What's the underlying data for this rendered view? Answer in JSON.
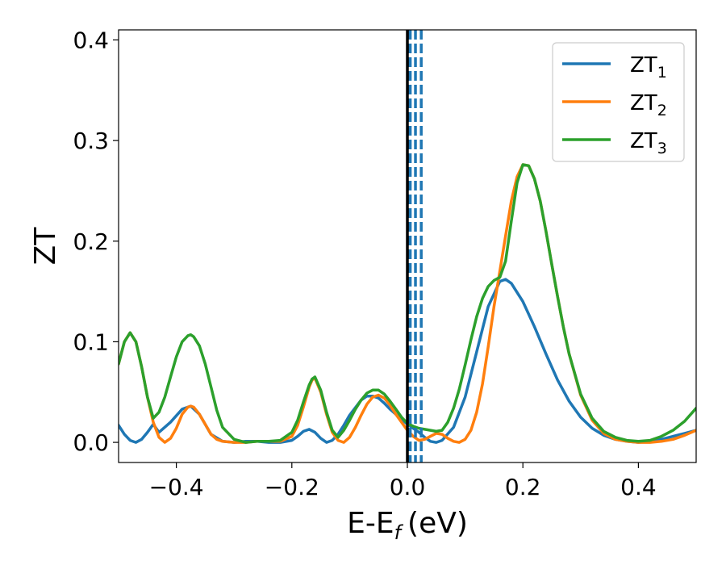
{
  "chart_data": {
    "type": "line",
    "xlabel": "E-E",
    "xlabel_sub": "f",
    "xlabel_unit": "(eV)",
    "ylabel": "ZT",
    "xlim": [
      -0.5,
      0.5
    ],
    "ylim": [
      -0.02,
      0.41
    ],
    "xticks": [
      -0.4,
      -0.2,
      0.0,
      0.2,
      0.4
    ],
    "xtick_labels": [
      "−0.4",
      "−0.2",
      "0.0",
      "0.2",
      "0.4"
    ],
    "yticks": [
      0.0,
      0.1,
      0.2,
      0.3,
      0.4
    ],
    "ytick_labels": [
      "0.0",
      "0.1",
      "0.2",
      "0.3",
      "0.4"
    ],
    "grid": false,
    "legend_position": "top-right",
    "vlines": [
      {
        "x": 0.0,
        "color": "#000000",
        "style": "solid"
      },
      {
        "x": 0.003,
        "color": "#000000",
        "style": "dashed"
      },
      {
        "x": 0.005,
        "color": "#1f77b4",
        "style": "dashed"
      },
      {
        "x": 0.014,
        "color": "#1f77b4",
        "style": "dashed"
      },
      {
        "x": 0.024,
        "color": "#1f77b4",
        "style": "dashed"
      }
    ],
    "series": [
      {
        "name": "ZT",
        "sub": "1",
        "color": "#1f77b4",
        "x": [
          -0.5,
          -0.49,
          -0.48,
          -0.47,
          -0.46,
          -0.45,
          -0.44,
          -0.43,
          -0.41,
          -0.39,
          -0.375,
          -0.36,
          -0.34,
          -0.32,
          -0.3,
          -0.28,
          -0.26,
          -0.24,
          -0.22,
          -0.2,
          -0.19,
          -0.18,
          -0.17,
          -0.16,
          -0.15,
          -0.14,
          -0.13,
          -0.12,
          -0.11,
          -0.1,
          -0.08,
          -0.07,
          -0.06,
          -0.05,
          -0.04,
          -0.03,
          -0.02,
          -0.01,
          0.0,
          0.01,
          0.02,
          0.03,
          0.04,
          0.05,
          0.06,
          0.08,
          0.1,
          0.12,
          0.14,
          0.16,
          0.17,
          0.18,
          0.2,
          0.22,
          0.24,
          0.26,
          0.28,
          0.3,
          0.32,
          0.34,
          0.36,
          0.38,
          0.4,
          0.42,
          0.44,
          0.46,
          0.48,
          0.5
        ],
        "y": [
          0.017,
          0.008,
          0.002,
          0.0,
          0.003,
          0.01,
          0.018,
          0.01,
          0.02,
          0.033,
          0.036,
          0.028,
          0.008,
          0.001,
          0.0,
          0.001,
          0.001,
          0.0,
          0.0,
          0.002,
          0.006,
          0.011,
          0.013,
          0.01,
          0.004,
          0.0,
          0.002,
          0.008,
          0.017,
          0.027,
          0.042,
          0.046,
          0.046,
          0.044,
          0.039,
          0.033,
          0.028,
          0.023,
          0.018,
          0.014,
          0.01,
          0.005,
          0.001,
          0.0,
          0.002,
          0.015,
          0.045,
          0.09,
          0.135,
          0.16,
          0.162,
          0.158,
          0.14,
          0.115,
          0.088,
          0.062,
          0.041,
          0.025,
          0.014,
          0.007,
          0.003,
          0.001,
          0.0,
          0.001,
          0.003,
          0.006,
          0.009,
          0.012
        ]
      },
      {
        "name": "ZT",
        "sub": "2",
        "color": "#ff7f0e",
        "x": [
          -0.5,
          -0.49,
          -0.48,
          -0.47,
          -0.46,
          -0.45,
          -0.44,
          -0.43,
          -0.42,
          -0.41,
          -0.4,
          -0.39,
          -0.38,
          -0.375,
          -0.37,
          -0.36,
          -0.35,
          -0.34,
          -0.33,
          -0.32,
          -0.3,
          -0.28,
          -0.26,
          -0.24,
          -0.22,
          -0.2,
          -0.19,
          -0.18,
          -0.17,
          -0.165,
          -0.16,
          -0.15,
          -0.14,
          -0.13,
          -0.12,
          -0.11,
          -0.1,
          -0.09,
          -0.08,
          -0.07,
          -0.06,
          -0.05,
          -0.04,
          -0.03,
          -0.02,
          -0.01,
          0.0,
          0.01,
          0.02,
          0.03,
          0.04,
          0.05,
          0.06,
          0.07,
          0.08,
          0.09,
          0.1,
          0.11,
          0.12,
          0.13,
          0.14,
          0.15,
          0.16,
          0.17,
          0.18,
          0.19,
          0.2,
          0.21,
          0.22,
          0.23,
          0.24,
          0.25,
          0.26,
          0.27,
          0.28,
          0.3,
          0.32,
          0.34,
          0.36,
          0.38,
          0.4,
          0.42,
          0.44,
          0.46,
          0.48,
          0.5
        ],
        "y": [
          0.078,
          0.1,
          0.109,
          0.1,
          0.075,
          0.045,
          0.02,
          0.005,
          0.0,
          0.004,
          0.014,
          0.028,
          0.035,
          0.036,
          0.035,
          0.028,
          0.018,
          0.008,
          0.003,
          0.001,
          0.0,
          0.0,
          0.001,
          0.001,
          0.001,
          0.006,
          0.017,
          0.035,
          0.055,
          0.062,
          0.064,
          0.05,
          0.028,
          0.01,
          0.002,
          0.0,
          0.005,
          0.015,
          0.027,
          0.038,
          0.045,
          0.047,
          0.044,
          0.037,
          0.028,
          0.02,
          0.012,
          0.006,
          0.002,
          0.003,
          0.006,
          0.009,
          0.008,
          0.004,
          0.001,
          0.0,
          0.003,
          0.012,
          0.03,
          0.058,
          0.095,
          0.135,
          0.17,
          0.205,
          0.24,
          0.264,
          0.276,
          0.275,
          0.262,
          0.24,
          0.21,
          0.177,
          0.145,
          0.115,
          0.088,
          0.047,
          0.022,
          0.009,
          0.003,
          0.001,
          0.0,
          0.0,
          0.001,
          0.003,
          0.007,
          0.012
        ]
      },
      {
        "name": "ZT",
        "sub": "3",
        "color": "#2ca02c",
        "x": [
          -0.5,
          -0.49,
          -0.48,
          -0.47,
          -0.46,
          -0.45,
          -0.44,
          -0.43,
          -0.42,
          -0.41,
          -0.4,
          -0.39,
          -0.38,
          -0.375,
          -0.37,
          -0.36,
          -0.35,
          -0.34,
          -0.33,
          -0.32,
          -0.3,
          -0.28,
          -0.26,
          -0.24,
          -0.22,
          -0.2,
          -0.19,
          -0.18,
          -0.17,
          -0.165,
          -0.16,
          -0.15,
          -0.14,
          -0.13,
          -0.12,
          -0.11,
          -0.1,
          -0.09,
          -0.08,
          -0.07,
          -0.06,
          -0.05,
          -0.04,
          -0.03,
          -0.02,
          -0.01,
          0.0,
          0.01,
          0.02,
          0.03,
          0.04,
          0.05,
          0.06,
          0.07,
          0.08,
          0.09,
          0.1,
          0.11,
          0.12,
          0.13,
          0.14,
          0.15,
          0.16,
          0.17,
          0.18,
          0.19,
          0.2,
          0.21,
          0.22,
          0.23,
          0.24,
          0.25,
          0.26,
          0.27,
          0.28,
          0.3,
          0.32,
          0.34,
          0.36,
          0.38,
          0.4,
          0.42,
          0.44,
          0.46,
          0.48,
          0.5
        ],
        "y": [
          0.078,
          0.1,
          0.109,
          0.1,
          0.075,
          0.045,
          0.024,
          0.03,
          0.045,
          0.065,
          0.085,
          0.1,
          0.106,
          0.107,
          0.105,
          0.096,
          0.078,
          0.055,
          0.032,
          0.015,
          0.003,
          0.0,
          0.001,
          0.001,
          0.002,
          0.01,
          0.022,
          0.04,
          0.057,
          0.063,
          0.065,
          0.052,
          0.03,
          0.012,
          0.005,
          0.012,
          0.022,
          0.033,
          0.042,
          0.049,
          0.052,
          0.052,
          0.048,
          0.041,
          0.033,
          0.025,
          0.019,
          0.016,
          0.014,
          0.013,
          0.012,
          0.011,
          0.012,
          0.02,
          0.034,
          0.053,
          0.077,
          0.102,
          0.125,
          0.143,
          0.155,
          0.161,
          0.164,
          0.18,
          0.22,
          0.258,
          0.276,
          0.275,
          0.262,
          0.24,
          0.21,
          0.177,
          0.145,
          0.115,
          0.088,
          0.048,
          0.024,
          0.011,
          0.005,
          0.002,
          0.001,
          0.002,
          0.006,
          0.012,
          0.021,
          0.034
        ]
      }
    ]
  }
}
